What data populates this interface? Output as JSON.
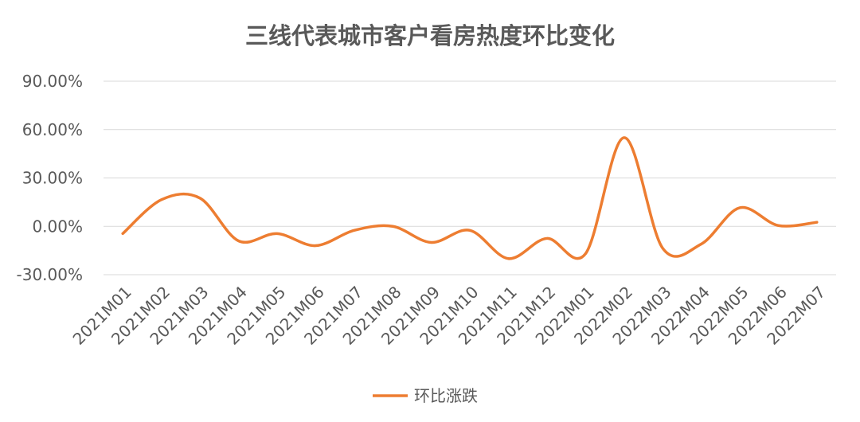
{
  "chart_data": {
    "type": "line",
    "title": "三线代表城市客户看房热度环比变化",
    "categories": [
      "2021M01",
      "2021M02",
      "2021M03",
      "2021M04",
      "2021M05",
      "2021M06",
      "2021M07",
      "2021M08",
      "2021M09",
      "2021M10",
      "2021M11",
      "2021M12",
      "2022M01",
      "2022M02",
      "2022M03",
      "2022M04",
      "2022M05",
      "2022M06",
      "2022M07"
    ],
    "series": [
      {
        "name": "环比涨跌",
        "color": "#ED7D31",
        "values": [
          -4.5,
          16.5,
          17.5,
          -9.0,
          -4.5,
          -12.0,
          -2.5,
          0.0,
          -10.0,
          -2.5,
          -20.0,
          -7.5,
          -17.0,
          55.0,
          -13.5,
          -11.0,
          11.5,
          0.5,
          2.5
        ]
      }
    ],
    "y_ticks": [
      "90.00%",
      "60.00%",
      "30.00%",
      "0.00%",
      "-30.00%"
    ],
    "ylim": [
      -30,
      90
    ],
    "y_step": 30,
    "grid": true,
    "legend_position": "bottom"
  }
}
